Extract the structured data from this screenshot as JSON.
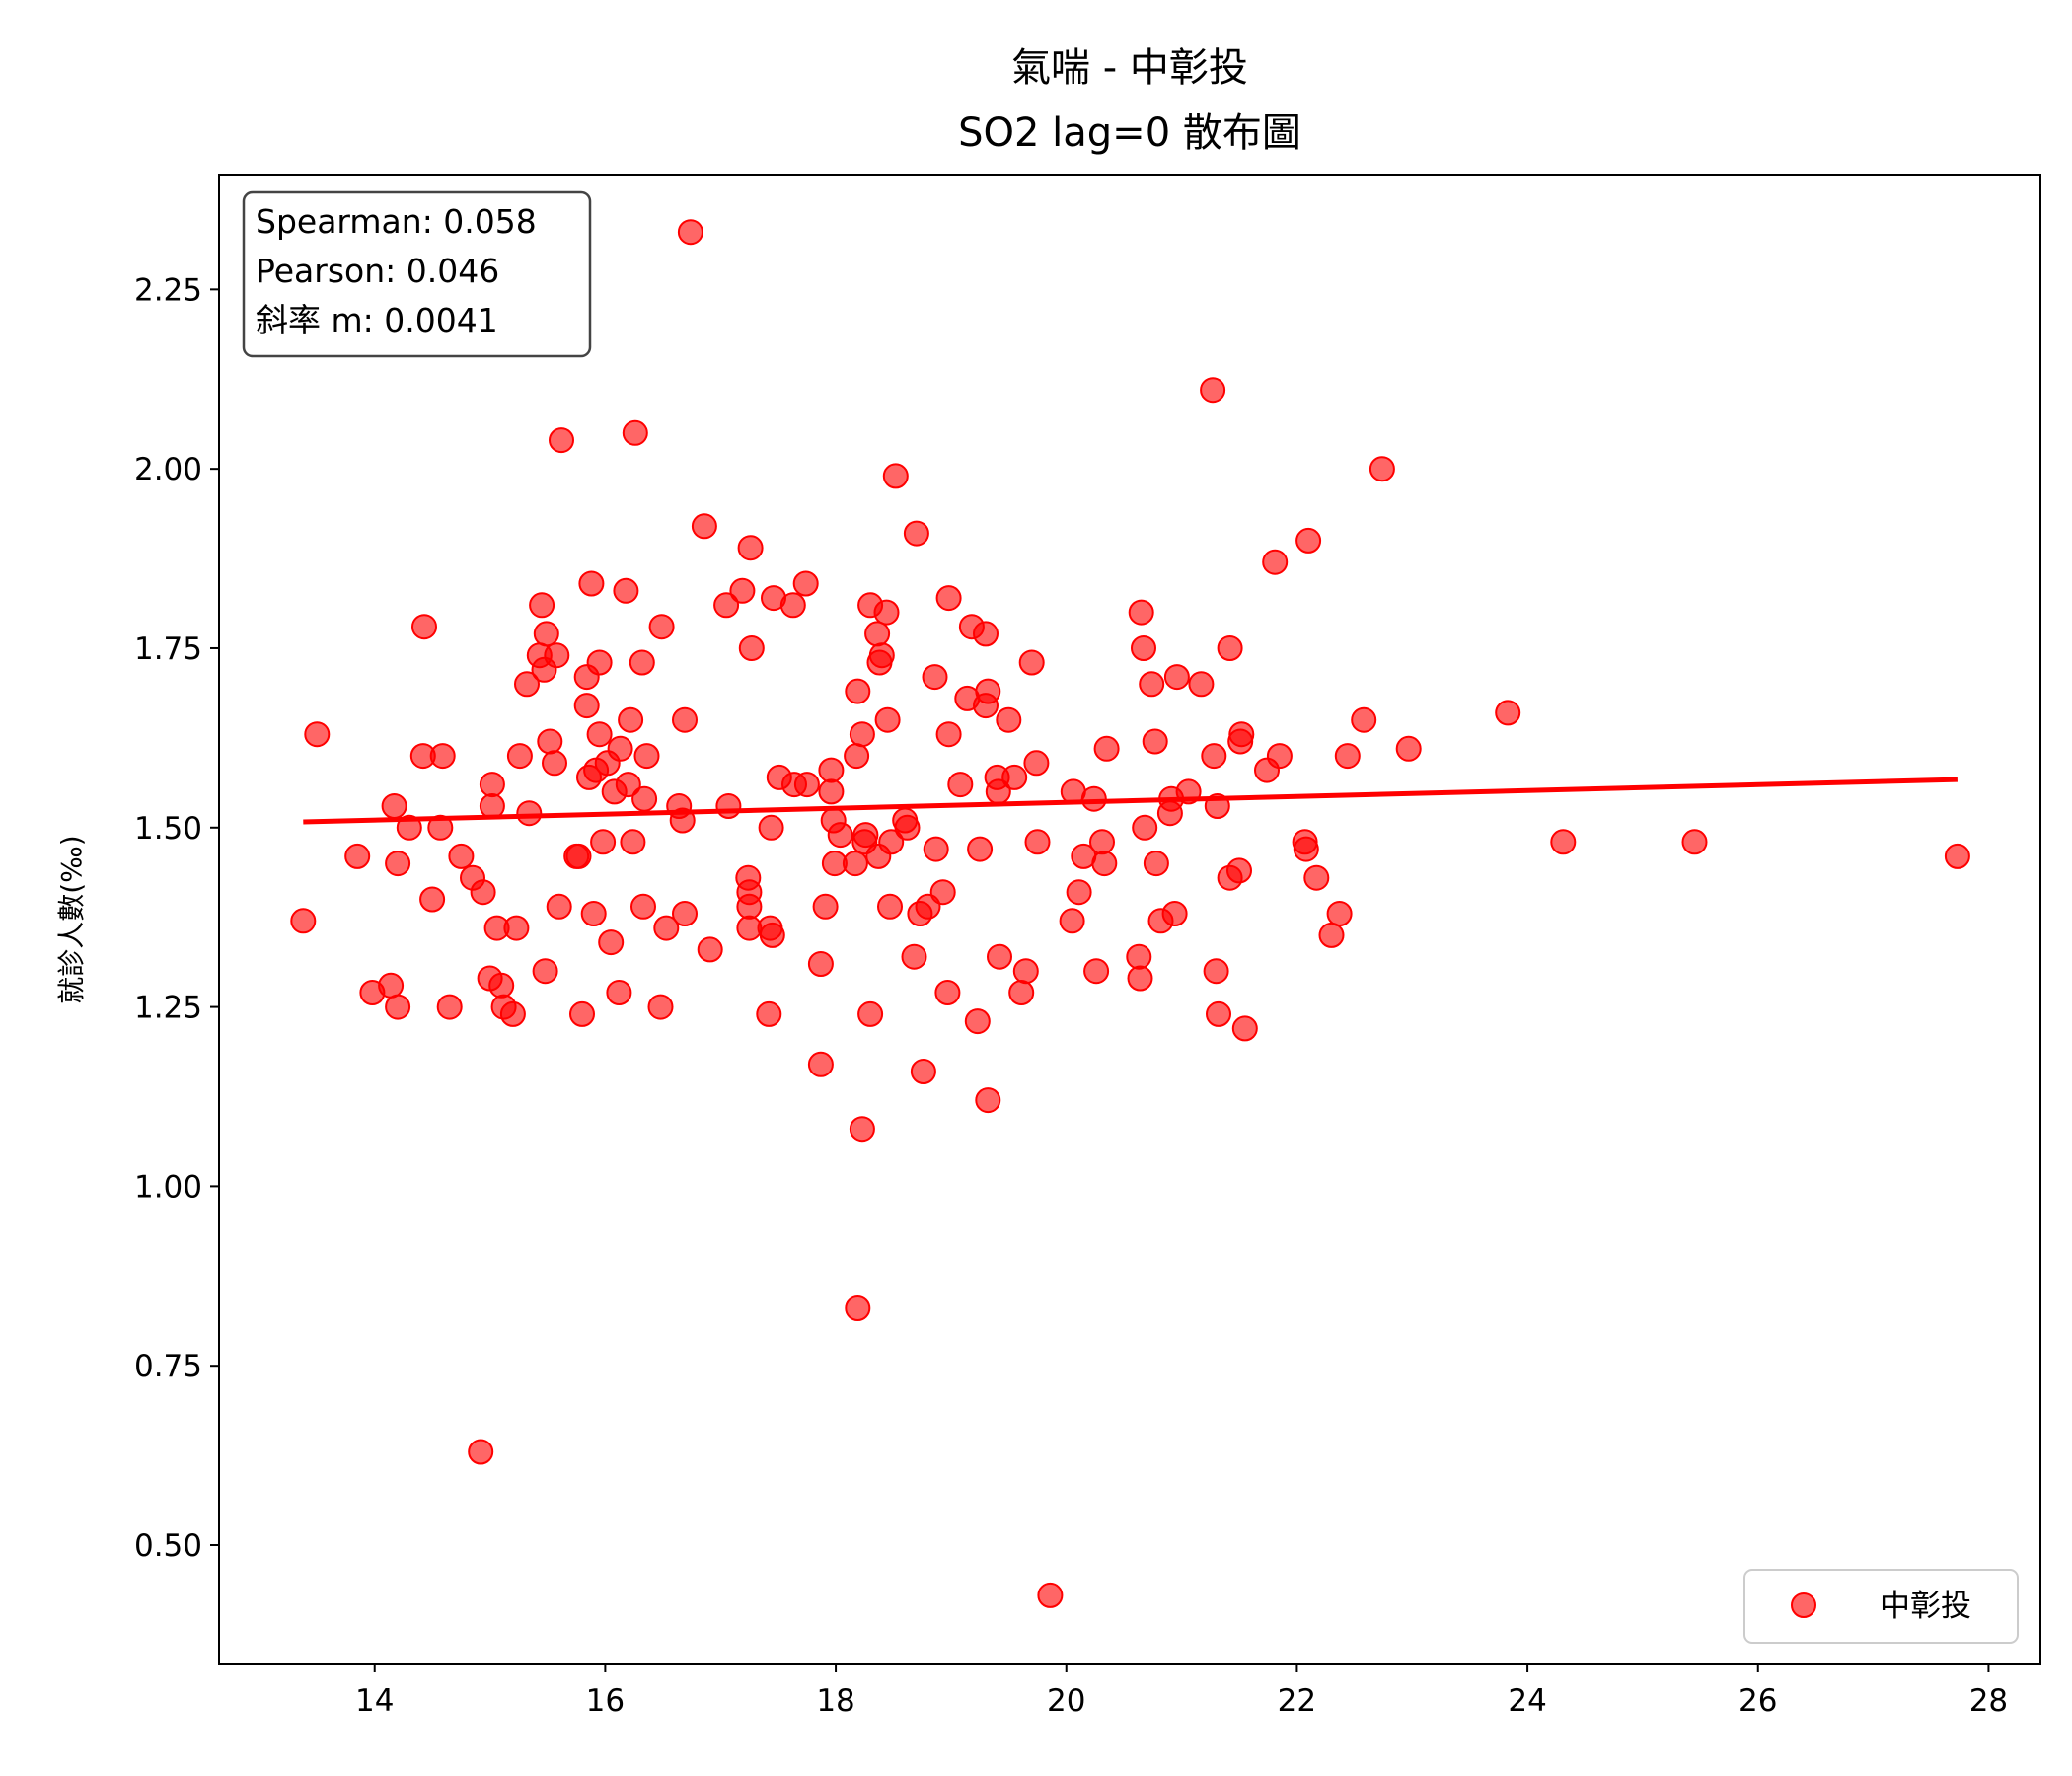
{
  "chart_data": {
    "type": "scatter",
    "title": "氣喘 - 中彰投",
    "subtitle": "SO2 lag=0 散布圖",
    "xlabel": "",
    "ylabel": "就診人數(‰)",
    "xlim": [
      12.65,
      28.45
    ],
    "ylim": [
      0.335,
      2.41
    ],
    "xticks": [
      "14",
      "16",
      "18",
      "20",
      "22",
      "24",
      "26",
      "28"
    ],
    "yticks": [
      "0.50",
      "0.75",
      "1.00",
      "1.25",
      "1.50",
      "1.75",
      "2.00",
      "2.25"
    ],
    "grid": false,
    "legend": {
      "location": "lower-right",
      "entries": [
        "中彰投"
      ]
    },
    "stats_box": {
      "location": "top-left",
      "lines": [
        "Spearman: 0.058",
        "Pearson: 0.046",
        "斜率 m: 0.0041"
      ]
    },
    "colors": {
      "points": "#ff0000",
      "fit_line": "#ff0000"
    },
    "fit_line": {
      "x": [
        13.38,
        27.73
      ],
      "y": [
        1.508,
        1.567
      ]
    },
    "series": [
      {
        "name": "中彰投",
        "points": [
          [
            13.38,
            1.37
          ],
          [
            13.5,
            1.63
          ],
          [
            13.85,
            1.46
          ],
          [
            13.98,
            1.27
          ],
          [
            14.14,
            1.28
          ],
          [
            14.17,
            1.53
          ],
          [
            14.2,
            1.25
          ],
          [
            14.2,
            1.45
          ],
          [
            14.3,
            1.5
          ],
          [
            14.42,
            1.6
          ],
          [
            14.43,
            1.78
          ],
          [
            14.5,
            1.4
          ],
          [
            14.57,
            1.5
          ],
          [
            14.59,
            1.6
          ],
          [
            14.65,
            1.25
          ],
          [
            14.75,
            1.46
          ],
          [
            14.85,
            1.43
          ],
          [
            14.92,
            0.63
          ],
          [
            14.94,
            1.41
          ],
          [
            15.0,
            1.29
          ],
          [
            15.02,
            1.56
          ],
          [
            15.02,
            1.53
          ],
          [
            15.06,
            1.36
          ],
          [
            15.1,
            1.28
          ],
          [
            15.12,
            1.25
          ],
          [
            15.2,
            1.24
          ],
          [
            15.23,
            1.36
          ],
          [
            15.26,
            1.6
          ],
          [
            15.32,
            1.7
          ],
          [
            15.34,
            1.52
          ],
          [
            15.43,
            1.74
          ],
          [
            15.45,
            1.81
          ],
          [
            15.47,
            1.72
          ],
          [
            15.48,
            1.3
          ],
          [
            15.49,
            1.77
          ],
          [
            15.52,
            1.62
          ],
          [
            15.56,
            1.59
          ],
          [
            15.58,
            1.74
          ],
          [
            15.6,
            1.39
          ],
          [
            15.62,
            2.04
          ],
          [
            15.75,
            1.46
          ],
          [
            15.77,
            1.46
          ],
          [
            15.8,
            1.24
          ],
          [
            15.84,
            1.71
          ],
          [
            15.84,
            1.67
          ],
          [
            15.86,
            1.57
          ],
          [
            15.88,
            1.84
          ],
          [
            15.9,
            1.38
          ],
          [
            15.92,
            1.58
          ],
          [
            15.95,
            1.73
          ],
          [
            15.95,
            1.63
          ],
          [
            15.98,
            1.48
          ],
          [
            16.02,
            1.59
          ],
          [
            16.05,
            1.34
          ],
          [
            16.08,
            1.55
          ],
          [
            16.12,
            1.27
          ],
          [
            16.13,
            1.61
          ],
          [
            16.18,
            1.83
          ],
          [
            16.2,
            1.56
          ],
          [
            16.22,
            1.65
          ],
          [
            16.24,
            1.48
          ],
          [
            16.26,
            2.05
          ],
          [
            16.32,
            1.73
          ],
          [
            16.33,
            1.39
          ],
          [
            16.34,
            1.54
          ],
          [
            16.36,
            1.6
          ],
          [
            16.48,
            1.25
          ],
          [
            16.49,
            1.78
          ],
          [
            16.53,
            1.36
          ],
          [
            16.64,
            1.53
          ],
          [
            16.67,
            1.51
          ],
          [
            16.69,
            1.65
          ],
          [
            16.69,
            1.38
          ],
          [
            16.74,
            2.33
          ],
          [
            16.86,
            1.92
          ],
          [
            16.91,
            1.33
          ],
          [
            17.05,
            1.81
          ],
          [
            17.07,
            1.53
          ],
          [
            17.19,
            1.83
          ],
          [
            17.24,
            1.43
          ],
          [
            17.25,
            1.41
          ],
          [
            17.25,
            1.39
          ],
          [
            17.25,
            1.36
          ],
          [
            17.26,
            1.89
          ],
          [
            17.27,
            1.75
          ],
          [
            17.42,
            1.24
          ],
          [
            17.43,
            1.36
          ],
          [
            17.44,
            1.5
          ],
          [
            17.45,
            1.35
          ],
          [
            17.46,
            1.82
          ],
          [
            17.51,
            1.57
          ],
          [
            17.63,
            1.81
          ],
          [
            17.64,
            1.56
          ],
          [
            17.74,
            1.84
          ],
          [
            17.75,
            1.56
          ],
          [
            17.87,
            1.31
          ],
          [
            17.87,
            1.17
          ],
          [
            17.91,
            1.39
          ],
          [
            17.96,
            1.58
          ],
          [
            17.96,
            1.55
          ],
          [
            17.98,
            1.51
          ],
          [
            17.99,
            1.45
          ],
          [
            18.04,
            1.49
          ],
          [
            18.17,
            1.45
          ],
          [
            18.18,
            1.6
          ],
          [
            18.19,
            0.83
          ],
          [
            18.19,
            1.69
          ],
          [
            18.23,
            1.63
          ],
          [
            18.23,
            1.08
          ],
          [
            18.25,
            1.48
          ],
          [
            18.26,
            1.49
          ],
          [
            18.3,
            1.81
          ],
          [
            18.3,
            1.24
          ],
          [
            18.36,
            1.77
          ],
          [
            18.37,
            1.46
          ],
          [
            18.38,
            1.73
          ],
          [
            18.4,
            1.74
          ],
          [
            18.44,
            1.8
          ],
          [
            18.45,
            1.65
          ],
          [
            18.47,
            1.39
          ],
          [
            18.48,
            1.48
          ],
          [
            18.52,
            1.99
          ],
          [
            18.6,
            1.51
          ],
          [
            18.62,
            1.5
          ],
          [
            18.68,
            1.32
          ],
          [
            18.7,
            1.91
          ],
          [
            18.73,
            1.38
          ],
          [
            18.76,
            1.16
          ],
          [
            18.8,
            1.39
          ],
          [
            18.86,
            1.71
          ],
          [
            18.87,
            1.47
          ],
          [
            18.93,
            1.41
          ],
          [
            18.97,
            1.27
          ],
          [
            18.98,
            1.82
          ],
          [
            18.98,
            1.63
          ],
          [
            19.08,
            1.56
          ],
          [
            19.14,
            1.68
          ],
          [
            19.18,
            1.78
          ],
          [
            19.23,
            1.23
          ],
          [
            19.25,
            1.47
          ],
          [
            19.3,
            1.67
          ],
          [
            19.3,
            1.77
          ],
          [
            19.32,
            1.12
          ],
          [
            19.32,
            1.69
          ],
          [
            19.4,
            1.57
          ],
          [
            19.41,
            1.55
          ],
          [
            19.42,
            1.32
          ],
          [
            19.5,
            1.65
          ],
          [
            19.55,
            1.57
          ],
          [
            19.61,
            1.27
          ],
          [
            19.65,
            1.3
          ],
          [
            19.7,
            1.73
          ],
          [
            19.74,
            1.59
          ],
          [
            19.75,
            1.48
          ],
          [
            19.86,
            0.43
          ],
          [
            20.05,
            1.37
          ],
          [
            20.06,
            1.55
          ],
          [
            20.11,
            1.41
          ],
          [
            20.15,
            1.46
          ],
          [
            20.24,
            1.54
          ],
          [
            20.26,
            1.3
          ],
          [
            20.31,
            1.48
          ],
          [
            20.33,
            1.45
          ],
          [
            20.35,
            1.61
          ],
          [
            20.63,
            1.32
          ],
          [
            20.64,
            1.29
          ],
          [
            20.65,
            1.8
          ],
          [
            20.67,
            1.75
          ],
          [
            20.68,
            1.5
          ],
          [
            20.74,
            1.7
          ],
          [
            20.77,
            1.62
          ],
          [
            20.78,
            1.45
          ],
          [
            20.82,
            1.37
          ],
          [
            20.9,
            1.52
          ],
          [
            20.91,
            1.54
          ],
          [
            20.94,
            1.38
          ],
          [
            20.96,
            1.71
          ],
          [
            21.06,
            1.55
          ],
          [
            21.17,
            1.7
          ],
          [
            21.27,
            2.11
          ],
          [
            21.28,
            1.6
          ],
          [
            21.3,
            1.3
          ],
          [
            21.31,
            1.53
          ],
          [
            21.32,
            1.24
          ],
          [
            21.42,
            1.43
          ],
          [
            21.42,
            1.75
          ],
          [
            21.5,
            1.44
          ],
          [
            21.51,
            1.62
          ],
          [
            21.52,
            1.63
          ],
          [
            21.55,
            1.22
          ],
          [
            21.74,
            1.58
          ],
          [
            21.81,
            1.87
          ],
          [
            21.85,
            1.6
          ],
          [
            22.07,
            1.48
          ],
          [
            22.08,
            1.47
          ],
          [
            22.1,
            1.9
          ],
          [
            22.17,
            1.43
          ],
          [
            22.3,
            1.35
          ],
          [
            22.37,
            1.38
          ],
          [
            22.44,
            1.6
          ],
          [
            22.58,
            1.65
          ],
          [
            22.74,
            2.0
          ],
          [
            22.97,
            1.61
          ],
          [
            23.83,
            1.66
          ],
          [
            24.31,
            1.48
          ],
          [
            25.45,
            1.48
          ],
          [
            27.73,
            1.46
          ]
        ]
      }
    ]
  }
}
